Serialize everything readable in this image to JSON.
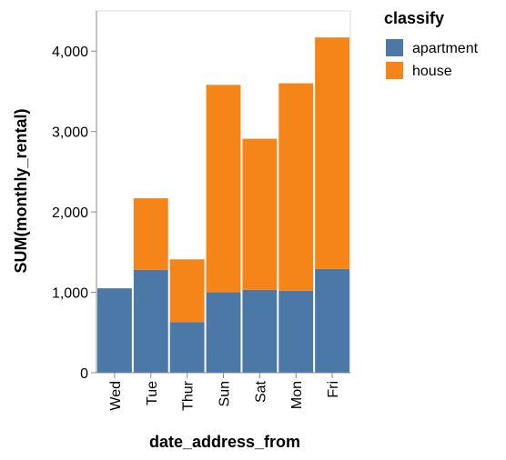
{
  "chart_data": {
    "type": "bar",
    "stacked": true,
    "categories": [
      "Wed",
      "Tue",
      "Thur",
      "Sun",
      "Sat",
      "Mon",
      "Fri"
    ],
    "series": [
      {
        "name": "apartment",
        "color": "#4c78a8",
        "values": [
          1050,
          1280,
          630,
          1000,
          1030,
          1020,
          1290
        ]
      },
      {
        "name": "house",
        "color": "#f58518",
        "values": [
          0,
          890,
          780,
          2580,
          1880,
          2580,
          2880
        ]
      }
    ],
    "xlabel": "date_address_from",
    "ylabel": "SUM(monthly_rental)",
    "ylim": [
      0,
      4500
    ],
    "yticks": [
      0,
      1000,
      2000,
      3000,
      4000
    ],
    "ytick_labels": [
      "0",
      "1,000",
      "2,000",
      "3,000",
      "4,000"
    ],
    "legend": {
      "title": "classify",
      "position": "right",
      "items": [
        "apartment",
        "house"
      ]
    },
    "grid": false
  }
}
